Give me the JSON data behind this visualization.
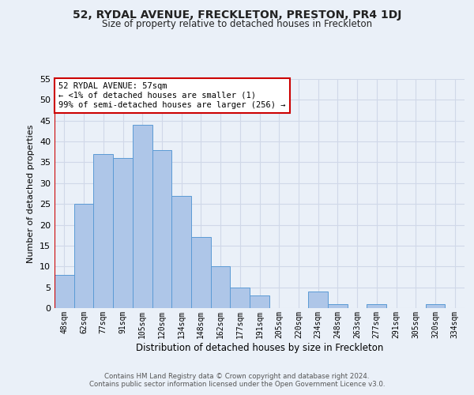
{
  "title": "52, RYDAL AVENUE, FRECKLETON, PRESTON, PR4 1DJ",
  "subtitle": "Size of property relative to detached houses in Freckleton",
  "xlabel": "Distribution of detached houses by size in Freckleton",
  "ylabel": "Number of detached properties",
  "footnote1": "Contains HM Land Registry data © Crown copyright and database right 2024.",
  "footnote2": "Contains public sector information licensed under the Open Government Licence v3.0.",
  "annotation_title": "52 RYDAL AVENUE: 57sqm",
  "annotation_line1": "← <1% of detached houses are smaller (1)",
  "annotation_line2": "99% of semi-detached houses are larger (256) →",
  "bin_labels": [
    "48sqm",
    "62sqm",
    "77sqm",
    "91sqm",
    "105sqm",
    "120sqm",
    "134sqm",
    "148sqm",
    "162sqm",
    "177sqm",
    "191sqm",
    "205sqm",
    "220sqm",
    "234sqm",
    "248sqm",
    "263sqm",
    "277sqm",
    "291sqm",
    "305sqm",
    "320sqm",
    "334sqm"
  ],
  "bar_heights": [
    8,
    25,
    37,
    36,
    44,
    38,
    27,
    17,
    10,
    5,
    3,
    0,
    0,
    4,
    1,
    0,
    1,
    0,
    0,
    1,
    0
  ],
  "bar_color": "#aec6e8",
  "bar_edge_color": "#5b9bd5",
  "highlight_color": "#cc0000",
  "highlight_bin_index": 0,
  "ylim": [
    0,
    55
  ],
  "yticks": [
    0,
    5,
    10,
    15,
    20,
    25,
    30,
    35,
    40,
    45,
    50,
    55
  ],
  "grid_color": "#d0d8e8",
  "background_color": "#eaf0f8"
}
